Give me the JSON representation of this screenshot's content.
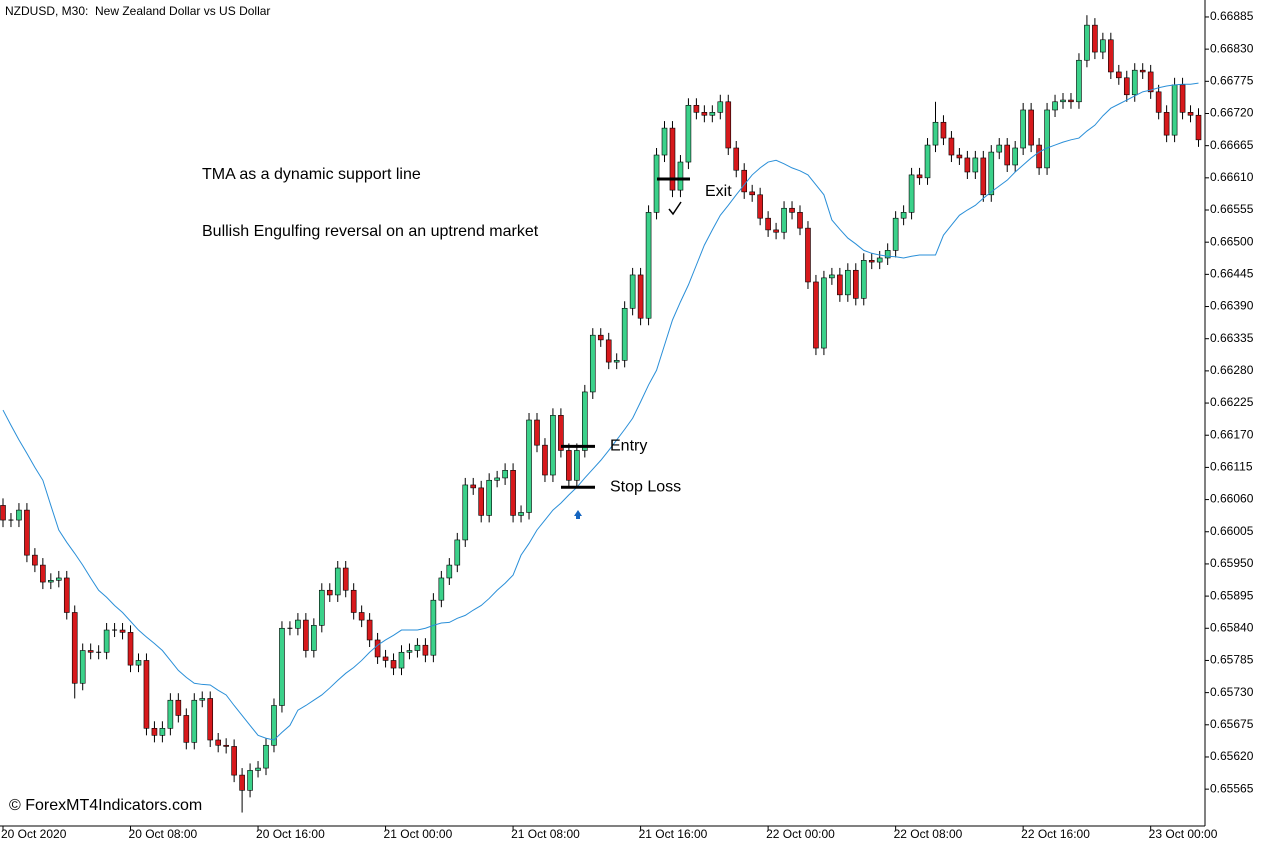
{
  "chart_data": {
    "type": "candlestick",
    "title": "NZDUSD, M30:  New Zealand Dollar vs US Dollar",
    "annotations": [
      "TMA as a dynamic support line",
      "Bullish Engulfing reversal on an uptrend market"
    ],
    "watermark": "© ForexMT4Indicators.com",
    "levels": [
      {
        "label": "Entry",
        "value": 0.66151
      },
      {
        "label": "Stop Loss",
        "value": 0.66081
      },
      {
        "label": "Exit",
        "value": 0.66608
      }
    ],
    "up_color": "#3bd18a",
    "down_color": "#d7191c",
    "ylim": [
      0.65502,
      0.66914
    ],
    "yticks": [
      0.66885,
      {
        "value": 0.6683,
        "label": "0.66830"
      },
      0.66775,
      {
        "value": 0.6672,
        "label": "0.66720"
      },
      0.66665,
      {
        "value": 0.6661,
        "label": "0.66610"
      },
      0.66555,
      {
        "value": 0.665,
        "label": "0.66500"
      },
      0.66445,
      {
        "value": 0.6639,
        "label": "0.66390"
      },
      0.66335,
      {
        "value": 0.6628,
        "label": "0.66280"
      },
      0.66225,
      {
        "value": 0.6617,
        "label": "0.66170"
      },
      0.66115,
      {
        "value": 0.6606,
        "label": "0.66060"
      },
      0.66005,
      {
        "value": 0.6595,
        "label": "0.65950"
      },
      0.65895,
      {
        "value": 0.6584,
        "label": "0.65840"
      },
      0.65785,
      {
        "value": 0.6573,
        "label": "0.65730"
      },
      0.65675,
      {
        "value": 0.6562,
        "label": "0.65620"
      },
      0.65565
    ],
    "categories": [
      "20 Oct 2020",
      null,
      null,
      null,
      null,
      null,
      null,
      null,
      null,
      null,
      null,
      null,
      null,
      null,
      null,
      null,
      "20 Oct 08:00",
      null,
      null,
      null,
      null,
      null,
      null,
      null,
      null,
      null,
      null,
      null,
      null,
      null,
      null,
      null,
      "20 Oct 16:00",
      null,
      null,
      null,
      null,
      null,
      null,
      null,
      null,
      null,
      null,
      null,
      null,
      null,
      null,
      null,
      "21 Oct 00:00",
      null,
      null,
      null,
      null,
      null,
      null,
      null,
      null,
      null,
      null,
      null,
      null,
      null,
      null,
      null,
      "21 Oct 08:00",
      null,
      null,
      null,
      null,
      null,
      null,
      null,
      null,
      null,
      null,
      null,
      null,
      null,
      null,
      null,
      "21 Oct 16:00",
      null,
      null,
      null,
      null,
      null,
      null,
      null,
      null,
      null,
      null,
      null,
      null,
      null,
      null,
      null,
      "22 Oct 00:00",
      null,
      null,
      null,
      null,
      null,
      null,
      null,
      null,
      null,
      null,
      null,
      null,
      null,
      null,
      null,
      "22 Oct 08:00",
      null,
      null,
      null,
      null,
      null,
      null,
      null,
      null,
      null,
      null,
      null,
      null,
      null,
      null,
      null,
      "22 Oct 16:00",
      null,
      null,
      null,
      null,
      null,
      null,
      null,
      null,
      null,
      null,
      null,
      null,
      null,
      null,
      null,
      "23 Oct 00:00",
      null,
      null,
      null,
      null,
      null,
      null
    ],
    "open": [
      0.6605,
      0.66025,
      0.66025,
      0.66042,
      0.65965,
      0.65948,
      0.65919,
      0.65922,
      0.65926,
      0.65867,
      0.65746,
      0.65802,
      0.65799,
      0.65799,
      0.65837,
      0.65837,
      0.65833,
      0.65777,
      0.65785,
      0.65669,
      0.65657,
      0.65669,
      0.65717,
      0.65691,
      0.65645,
      0.65717,
      0.6572,
      0.65649,
      0.6564,
      0.65638,
      0.65589,
      0.65563,
      0.65597,
      0.65601,
      0.6564,
      0.65708,
      0.6584,
      0.6584,
      0.65854,
      0.65802,
      0.65845,
      0.65905,
      0.65897,
      0.65943,
      0.65905,
      0.65867,
      0.65854,
      0.6582,
      0.65791,
      0.65785,
      0.65772,
      0.65799,
      0.65802,
      0.65811,
      0.65794,
      0.65888,
      0.65926,
      0.65948,
      0.65991,
      0.66085,
      0.6608,
      0.66033,
      0.66093,
      0.66097,
      0.6611,
      0.66033,
      0.66038,
      0.66196,
      0.66153,
      0.66102,
      0.66204,
      0.66144,
      0.66093,
      0.66144,
      0.66244,
      0.66341,
      0.66333,
      0.66295,
      0.66298,
      0.66387,
      0.66444,
      0.6637,
      0.66551,
      0.66649,
      0.66695,
      0.66589,
      0.66637,
      0.66734,
      0.66722,
      0.66717,
      0.66722,
      0.6674,
      0.66661,
      0.66623,
      0.66586,
      0.66581,
      0.66541,
      0.66521,
      0.66517,
      0.66558,
      0.66551,
      0.66524,
      0.66432,
      0.66319,
      0.66439,
      0.66444,
      0.6641,
      0.66452,
      0.66404,
      0.66469,
      0.66466,
      0.66473,
      0.66486,
      0.66541,
      0.66551,
      0.66615,
      0.6661,
      0.66666,
      0.66705,
      0.66678,
      0.66649,
      0.66644,
      0.6662,
      0.66644,
      0.66581,
      0.66654,
      0.66666,
      0.66632,
      0.66661,
      0.66726,
      0.66666,
      0.66627,
      0.66726,
      0.6674,
      0.66743,
      0.6674,
      0.66811,
      0.66871,
      0.66825,
      0.66846,
      0.66791,
      0.66781,
      0.66752,
      0.66794,
      0.66791,
      0.66757,
      0.66722,
      0.66683,
      0.66769,
      0.66722,
      0.66717
    ],
    "high": [
      0.66062,
      0.66037,
      0.66054,
      0.66054,
      0.65977,
      0.6596,
      0.65934,
      0.65938,
      0.65938,
      0.65879,
      0.65814,
      0.65814,
      0.65811,
      0.65849,
      0.65849,
      0.65849,
      0.65845,
      0.65797,
      0.65797,
      0.65681,
      0.65681,
      0.65729,
      0.65729,
      0.65703,
      0.65729,
      0.65732,
      0.65732,
      0.65661,
      0.65652,
      0.6565,
      0.65601,
      0.65609,
      0.65613,
      0.65652,
      0.6572,
      0.65852,
      0.65852,
      0.65866,
      0.65866,
      0.65857,
      0.65917,
      0.65917,
      0.65955,
      0.65955,
      0.65917,
      0.65879,
      0.65866,
      0.65832,
      0.65803,
      0.65797,
      0.65811,
      0.65814,
      0.65823,
      0.65823,
      0.659,
      0.65938,
      0.6596,
      0.66003,
      0.66097,
      0.66097,
      0.66092,
      0.66105,
      0.66109,
      0.66122,
      0.66122,
      0.6605,
      0.66208,
      0.66208,
      0.66165,
      0.66216,
      0.66216,
      0.66156,
      0.66156,
      0.66256,
      0.66353,
      0.66353,
      0.66345,
      0.6631,
      0.66399,
      0.66456,
      0.66456,
      0.66563,
      0.66661,
      0.66707,
      0.66707,
      0.66649,
      0.66746,
      0.66746,
      0.66734,
      0.66734,
      0.66752,
      0.66752,
      0.66673,
      0.66635,
      0.66598,
      0.66593,
      0.66553,
      0.66533,
      0.6657,
      0.6657,
      0.66563,
      0.66536,
      0.66444,
      0.66451,
      0.66456,
      0.66456,
      0.66464,
      0.66464,
      0.66481,
      0.66481,
      0.66485,
      0.66498,
      0.66553,
      0.66563,
      0.66627,
      0.66627,
      0.66678,
      0.6674,
      0.66717,
      0.6669,
      0.66661,
      0.66656,
      0.66656,
      0.66656,
      0.66666,
      0.66678,
      0.66678,
      0.66673,
      0.66738,
      0.66738,
      0.66678,
      0.66738,
      0.66752,
      0.66755,
      0.66755,
      0.66823,
      0.66888,
      0.66883,
      0.66858,
      0.66858,
      0.66803,
      0.66793,
      0.66806,
      0.66806,
      0.66803,
      0.66769,
      0.66734,
      0.66781,
      0.66781,
      0.66734,
      0.66729
    ],
    "low": [
      0.66013,
      0.66013,
      0.66013,
      0.65953,
      0.65936,
      0.65907,
      0.65907,
      0.6591,
      0.65855,
      0.6572,
      0.65734,
      0.65787,
      0.65787,
      0.65787,
      0.65825,
      0.65821,
      0.65765,
      0.65765,
      0.65657,
      0.65645,
      0.65645,
      0.65657,
      0.65679,
      0.65633,
      0.65633,
      0.65705,
      0.65637,
      0.65628,
      0.65626,
      0.65577,
      0.65525,
      0.65551,
      0.65585,
      0.65589,
      0.65628,
      0.65696,
      0.65828,
      0.65828,
      0.6579,
      0.6579,
      0.65833,
      0.65885,
      0.65885,
      0.65893,
      0.65855,
      0.65842,
      0.65808,
      0.65779,
      0.65773,
      0.6576,
      0.6576,
      0.65787,
      0.6579,
      0.65782,
      0.65782,
      0.65876,
      0.65914,
      0.65936,
      0.65979,
      0.66068,
      0.66021,
      0.66021,
      0.66081,
      0.66085,
      0.66021,
      0.66021,
      0.66026,
      0.66141,
      0.6609,
      0.6609,
      0.66132,
      0.66081,
      0.66081,
      0.66132,
      0.66232,
      0.66321,
      0.66283,
      0.66283,
      0.66286,
      0.66375,
      0.66358,
      0.66358,
      0.66539,
      0.66637,
      0.66577,
      0.66577,
      0.66625,
      0.6671,
      0.66705,
      0.66705,
      0.6671,
      0.66649,
      0.66611,
      0.66574,
      0.66569,
      0.66529,
      0.66509,
      0.66505,
      0.66505,
      0.66539,
      0.66512,
      0.6642,
      0.66307,
      0.66307,
      0.66427,
      0.66398,
      0.66398,
      0.66392,
      0.66392,
      0.66454,
      0.66454,
      0.66461,
      0.66474,
      0.66529,
      0.66539,
      0.66598,
      0.66598,
      0.66654,
      0.66666,
      0.66637,
      0.66632,
      0.66608,
      0.66608,
      0.66569,
      0.66569,
      0.66642,
      0.6662,
      0.6662,
      0.66649,
      0.66654,
      0.66615,
      0.66615,
      0.66714,
      0.66728,
      0.66728,
      0.66728,
      0.66799,
      0.66813,
      0.66813,
      0.66779,
      0.66769,
      0.6674,
      0.6674,
      0.66779,
      0.66745,
      0.6671,
      0.66671,
      0.66671,
      0.6671,
      0.66705,
      0.66663
    ],
    "close": [
      0.66025,
      0.66025,
      0.66042,
      0.65965,
      0.65948,
      0.65919,
      0.65922,
      0.65926,
      0.65867,
      0.65746,
      0.65802,
      0.65799,
      0.65799,
      0.65837,
      0.65837,
      0.65833,
      0.65777,
      0.65785,
      0.65669,
      0.65657,
      0.65669,
      0.65717,
      0.65691,
      0.65645,
      0.65717,
      0.6572,
      0.65649,
      0.6564,
      0.65638,
      0.65589,
      0.65563,
      0.65597,
      0.65601,
      0.6564,
      0.65708,
      0.6584,
      0.6584,
      0.65854,
      0.65802,
      0.65845,
      0.65905,
      0.65897,
      0.65943,
      0.65905,
      0.65867,
      0.65854,
      0.6582,
      0.65791,
      0.65785,
      0.65772,
      0.65799,
      0.65802,
      0.65811,
      0.65794,
      0.65888,
      0.65926,
      0.65948,
      0.65991,
      0.66085,
      0.6608,
      0.66033,
      0.66093,
      0.66097,
      0.6611,
      0.66033,
      0.66038,
      0.66196,
      0.66153,
      0.66102,
      0.66204,
      0.66144,
      0.66093,
      0.66144,
      0.66244,
      0.66341,
      0.66333,
      0.66295,
      0.66298,
      0.66387,
      0.66444,
      0.6637,
      0.66551,
      0.66649,
      0.66695,
      0.66589,
      0.66637,
      0.66734,
      0.66722,
      0.66717,
      0.66722,
      0.6674,
      0.66661,
      0.66623,
      0.66586,
      0.66581,
      0.66541,
      0.66521,
      0.66517,
      0.66558,
      0.66551,
      0.66524,
      0.66432,
      0.66319,
      0.66439,
      0.66444,
      0.6641,
      0.66452,
      0.66404,
      0.66469,
      0.66466,
      0.66473,
      0.66486,
      0.66541,
      0.66551,
      0.66615,
      0.6661,
      0.66666,
      0.66705,
      0.66678,
      0.66649,
      0.66644,
      0.6662,
      0.66644,
      0.66581,
      0.66654,
      0.66666,
      0.66632,
      0.66661,
      0.66726,
      0.66666,
      0.66627,
      0.66726,
      0.6674,
      0.66743,
      0.6674,
      0.66811,
      0.66871,
      0.66825,
      0.66846,
      0.66791,
      0.66781,
      0.66752,
      0.66794,
      0.66791,
      0.66757,
      0.66722,
      0.66683,
      0.66769,
      0.66722,
      0.66717,
      0.66675
    ],
    "tma": {
      "color": "#2a8fd8",
      "values": [
        0.66213,
        0.66187,
        0.66162,
        0.66139,
        0.66115,
        0.66093,
        0.6605,
        0.66008,
        0.65987,
        0.65968,
        0.65948,
        0.65926,
        0.65905,
        0.65893,
        0.65879,
        0.65867,
        0.65852,
        0.65837,
        0.65825,
        0.65814,
        0.65802,
        0.65785,
        0.65768,
        0.65756,
        0.65746,
        0.65744,
        0.65743,
        0.65734,
        0.65726,
        0.65708,
        0.65691,
        0.65674,
        0.65657,
        0.65652,
        0.65649,
        0.65662,
        0.65674,
        0.657,
        0.65708,
        0.65717,
        0.65726,
        0.65738,
        0.65751,
        0.65763,
        0.65773,
        0.65785,
        0.65799,
        0.65811,
        0.6582,
        0.65828,
        0.65837,
        0.65837,
        0.65837,
        0.6584,
        0.65845,
        0.65849,
        0.6585,
        0.65857,
        0.65862,
        0.65871,
        0.65879,
        0.65891,
        0.65905,
        0.65917,
        0.65931,
        0.65965,
        0.65985,
        0.66008,
        0.66025,
        0.66042,
        0.66054,
        0.66068,
        0.66081,
        0.66097,
        0.66112,
        0.66127,
        0.66144,
        0.66162,
        0.6618,
        0.66199,
        0.66227,
        0.66256,
        0.66281,
        0.66324,
        0.66367,
        0.66398,
        0.66427,
        0.66461,
        0.66495,
        0.66521,
        0.66546,
        0.66563,
        0.66581,
        0.66598,
        0.66615,
        0.66627,
        0.66637,
        0.6664,
        0.66634,
        0.66627,
        0.66622,
        0.66615,
        0.66598,
        0.66581,
        0.66538,
        0.66522,
        0.66507,
        0.66497,
        0.66486,
        0.66481,
        0.66478,
        0.66476,
        0.66475,
        0.66473,
        0.66476,
        0.66478,
        0.66478,
        0.66478,
        0.66512,
        0.66529,
        0.66546,
        0.66555,
        0.66563,
        0.66575,
        0.66586,
        0.66596,
        0.66606,
        0.6662,
        0.66632,
        0.66644,
        0.66654,
        0.66661,
        0.66666,
        0.66671,
        0.66675,
        0.66678,
        0.6669,
        0.667,
        0.66716,
        0.66729,
        0.66736,
        0.66743,
        0.6675,
        0.66757,
        0.6676,
        0.66764,
        0.66767,
        0.66769,
        0.6677,
        0.6677,
        0.66772
      ]
    }
  }
}
